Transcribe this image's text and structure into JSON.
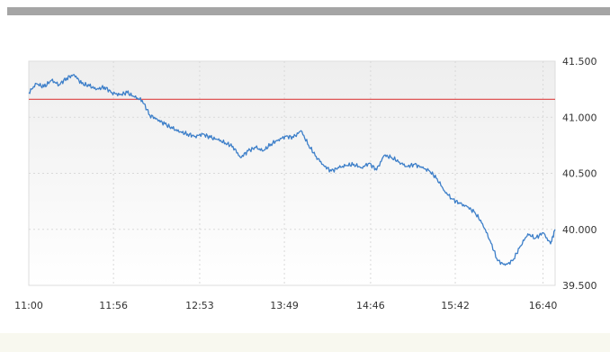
{
  "chart_data": {
    "type": "line",
    "title": "",
    "xlabel": "",
    "ylabel": "",
    "x_ticks": [
      "11:00",
      "11:56",
      "12:53",
      "13:49",
      "14:46",
      "15:42",
      "16:40"
    ],
    "x_range": [
      "11:00",
      "16:48"
    ],
    "y_ticks": [
      "41.500",
      "41.000",
      "40.500",
      "40.000",
      "39.500"
    ],
    "ylim": [
      39.5,
      41.5
    ],
    "grid": true,
    "reference_line": {
      "value": 41.16,
      "color": "#dd4444"
    },
    "series": [
      {
        "color": "#3d7fc9",
        "x": [
          "11:00",
          "11:05",
          "11:10",
          "11:15",
          "11:20",
          "11:25",
          "11:30",
          "11:35",
          "11:40",
          "11:45",
          "11:50",
          "11:55",
          "12:00",
          "12:05",
          "12:10",
          "12:15",
          "12:20",
          "12:25",
          "12:30",
          "12:35",
          "12:40",
          "12:45",
          "12:50",
          "12:55",
          "13:00",
          "13:05",
          "13:10",
          "13:15",
          "13:20",
          "13:25",
          "13:30",
          "13:35",
          "13:40",
          "13:45",
          "13:50",
          "13:55",
          "14:00",
          "14:05",
          "14:10",
          "14:15",
          "14:20",
          "14:25",
          "14:30",
          "14:35",
          "14:40",
          "14:45",
          "14:50",
          "14:55",
          "15:00",
          "15:05",
          "15:10",
          "15:15",
          "15:20",
          "15:25",
          "15:30",
          "15:35",
          "15:40",
          "15:45",
          "15:50",
          "15:55",
          "16:00",
          "16:05",
          "16:10",
          "16:15",
          "16:20",
          "16:25",
          "16:30",
          "16:35",
          "16:40",
          "16:45",
          "16:48"
        ],
        "values": [
          41.22,
          41.3,
          41.27,
          41.33,
          41.29,
          41.35,
          41.38,
          41.3,
          41.28,
          41.25,
          41.27,
          41.22,
          41.2,
          41.22,
          41.18,
          41.15,
          41.02,
          40.98,
          40.94,
          40.9,
          40.87,
          40.85,
          40.83,
          40.85,
          40.82,
          40.8,
          40.77,
          40.74,
          40.64,
          40.7,
          40.73,
          40.7,
          40.76,
          40.8,
          40.83,
          40.82,
          40.88,
          40.75,
          40.65,
          40.57,
          40.52,
          40.55,
          40.57,
          40.58,
          40.55,
          40.59,
          40.53,
          40.66,
          40.64,
          40.6,
          40.56,
          40.58,
          40.55,
          40.52,
          40.45,
          40.34,
          40.27,
          40.23,
          40.2,
          40.15,
          40.05,
          39.9,
          39.72,
          39.68,
          39.72,
          39.85,
          39.96,
          39.92,
          39.97,
          39.87,
          40.0
        ]
      }
    ]
  }
}
